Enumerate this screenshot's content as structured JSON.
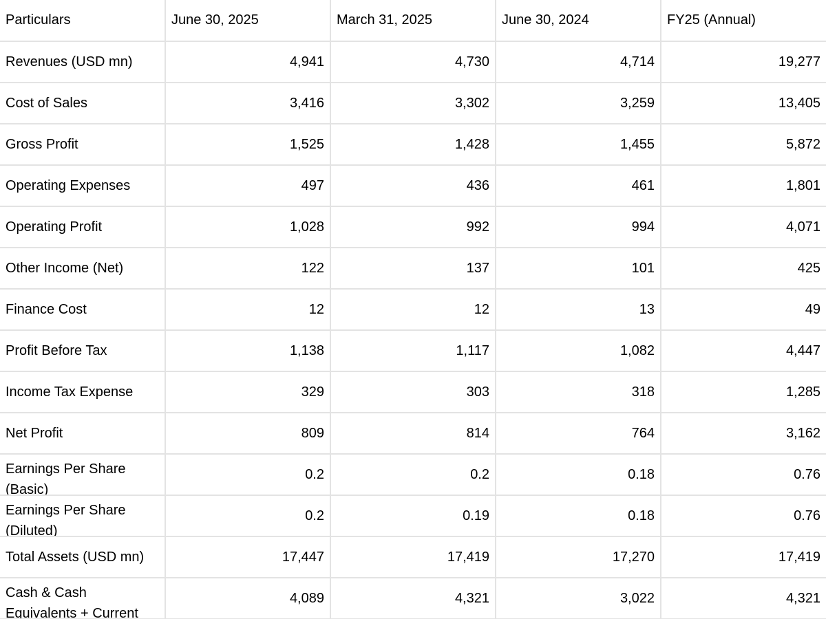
{
  "table": {
    "headers": [
      "Particulars",
      "June 30, 2025",
      "March 31, 2025",
      "June 30, 2024",
      "FY25 (Annual)"
    ],
    "rows": [
      {
        "label": "Revenues (USD mn)",
        "values": [
          "4,941",
          "4,730",
          "4,714",
          "19,277"
        ]
      },
      {
        "label": "Cost of Sales",
        "values": [
          "3,416",
          "3,302",
          "3,259",
          "13,405"
        ]
      },
      {
        "label": "Gross Profit",
        "values": [
          "1,525",
          "1,428",
          "1,455",
          "5,872"
        ]
      },
      {
        "label": "Operating Expenses",
        "values": [
          "497",
          "436",
          "461",
          "1,801"
        ]
      },
      {
        "label": "Operating Profit",
        "values": [
          "1,028",
          "992",
          "994",
          "4,071"
        ]
      },
      {
        "label": "Other Income (Net)",
        "values": [
          "122",
          "137",
          "101",
          "425"
        ]
      },
      {
        "label": "Finance Cost",
        "values": [
          "12",
          "12",
          "13",
          "49"
        ]
      },
      {
        "label": "Profit Before Tax",
        "values": [
          "1,138",
          "1,117",
          "1,082",
          "4,447"
        ]
      },
      {
        "label": "Income Tax Expense",
        "values": [
          "329",
          "303",
          "318",
          "1,285"
        ]
      },
      {
        "label": "Net Profit",
        "values": [
          "809",
          "814",
          "764",
          "3,162"
        ]
      },
      {
        "label": "Earnings Per Share (Basic)",
        "values": [
          "0.2",
          "0.2",
          "0.18",
          "0.76"
        ]
      },
      {
        "label": "Earnings Per Share (Diluted)",
        "values": [
          "0.2",
          "0.19",
          "0.18",
          "0.76"
        ]
      },
      {
        "label": "Total Assets (USD mn)",
        "values": [
          "17,447",
          "17,419",
          "17,270",
          "17,419"
        ]
      },
      {
        "label": "Cash & Cash Equivalents + Current",
        "values": [
          "4,089",
          "4,321",
          "3,022",
          "4,321"
        ]
      }
    ]
  }
}
